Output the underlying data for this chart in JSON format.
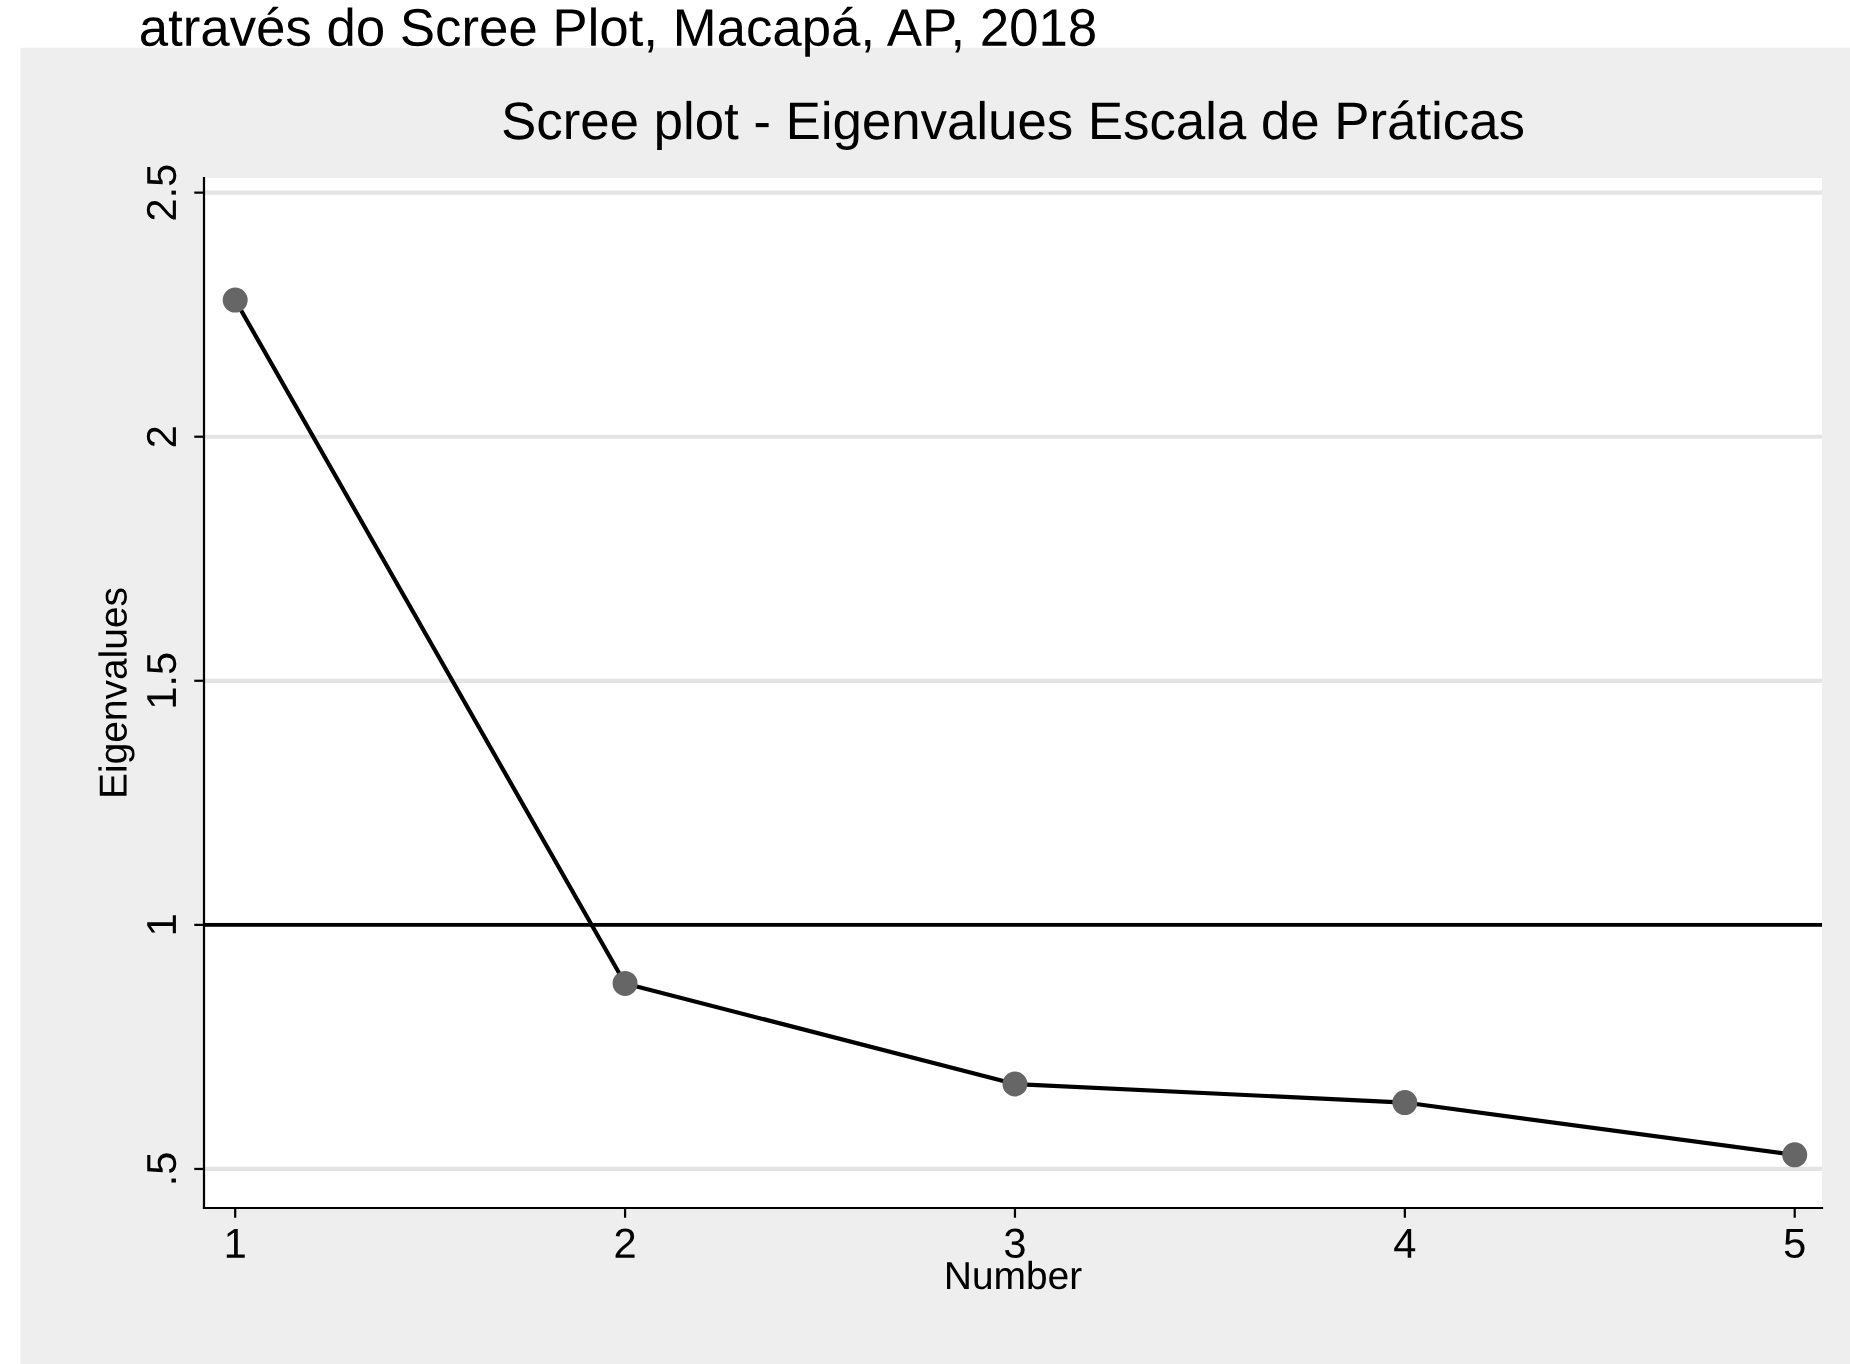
{
  "chart_data": {
    "type": "line",
    "title": "Scree plot - Eigenvalues Escala de Práticas",
    "xlabel": "Number",
    "ylabel": "Eigenvalues",
    "annotations": [
      "através do Scree Plot, Macapá, AP, 2018"
    ],
    "x": [
      1,
      2,
      3,
      4,
      5
    ],
    "series": [
      {
        "color": "#000000",
        "values": [
          2.28,
          0.88,
          0.674,
          0.636,
          0.529
        ]
      }
    ],
    "xlim": [
      0.92,
      5.07
    ],
    "xticks": [
      1,
      2,
      3,
      4,
      5
    ],
    "ylim": [
      0.42,
      2.53
    ],
    "yticks": [
      {
        "value": 0.5,
        "label": ".5"
      },
      1,
      1.5,
      2,
      2.5
    ],
    "ref_lines": [
      {
        "axis": "y",
        "value": 1,
        "label": null,
        "color": "#000000"
      }
    ],
    "grid": "y",
    "marker": "circle",
    "line_style": "solid",
    "legend": false
  }
}
